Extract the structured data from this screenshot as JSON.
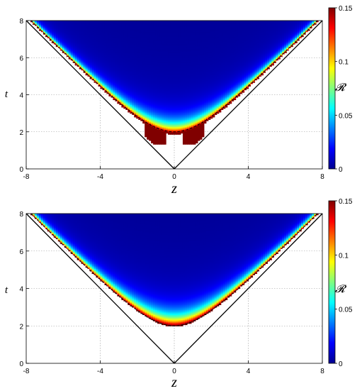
{
  "chart_data": [
    {
      "type": "heatmap",
      "panel": "top",
      "xlabel": "z",
      "ylabel": "t",
      "colorbar_label": "𝓡",
      "xlim": [
        -8,
        8
      ],
      "ylim": [
        0,
        8
      ],
      "x_ticks": [
        "-8",
        "-4",
        "0",
        "4",
        "8"
      ],
      "y_ticks": [
        "0",
        "2",
        "4",
        "6",
        "8"
      ],
      "colorbar_range": [
        0,
        0.15
      ],
      "colorbar_ticks": [
        "0",
        "0.05",
        "0.1",
        "0.15"
      ],
      "grid": true,
      "light_cone": {
        "apex": [
          0,
          0
        ],
        "slope": 1
      },
      "dashed_hyperbola": {
        "t_min": 2,
        "z_at_t8": 7.75
      },
      "red_band_ridge": {
        "description": "spikes at z=±0.5 near t≈1.5",
        "spike_positions": [
          -0.5,
          0.5
        ],
        "spike_bottom_t": 1.3
      }
    },
    {
      "type": "heatmap",
      "panel": "bottom",
      "xlabel": "z",
      "ylabel": "t",
      "colorbar_label": "𝓡",
      "xlim": [
        -8,
        8
      ],
      "ylim": [
        0,
        8
      ],
      "x_ticks": [
        "-8",
        "-4",
        "0",
        "4",
        "8"
      ],
      "y_ticks": [
        "0",
        "2",
        "4",
        "6",
        "8"
      ],
      "colorbar_range": [
        0,
        0.15
      ],
      "colorbar_ticks": [
        "0",
        "0.05",
        "0.1",
        "0.15"
      ],
      "grid": true,
      "light_cone": {
        "apex": [
          0,
          0
        ],
        "slope": 1
      },
      "dashed_hyperbola": {
        "t_min": 2,
        "z_at_t8": 7.75
      }
    }
  ]
}
